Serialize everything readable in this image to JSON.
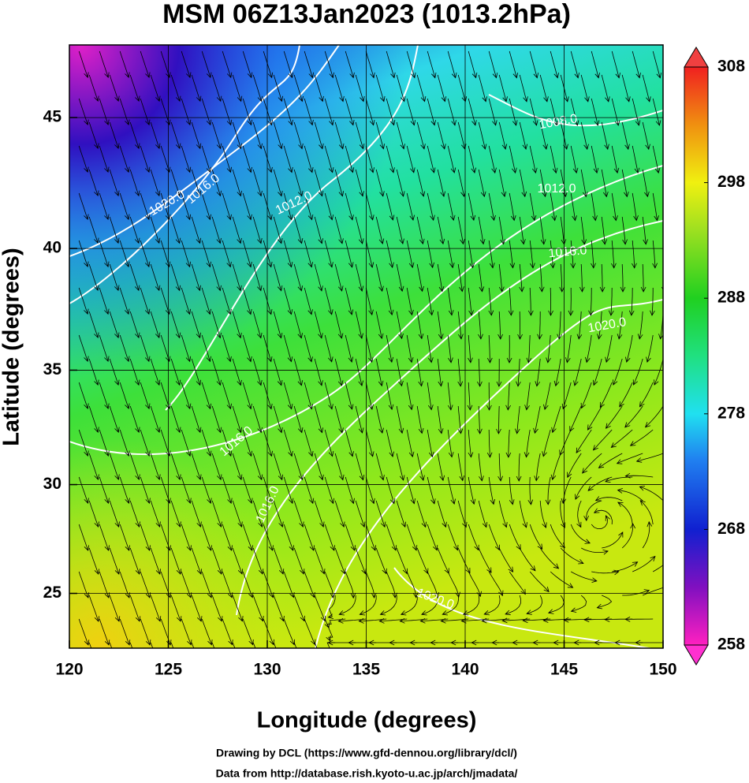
{
  "chart_data": {
    "type": "map",
    "title": "MSM 06Z13Jan2023 (1013.2hPa)",
    "x_label": "Longitude (degrees)",
    "y_label": "Latitude  (degrees)",
    "xlim": [
      120,
      150
    ],
    "xticks": [
      120,
      125,
      130,
      135,
      140,
      145,
      150
    ],
    "ylim": [
      22.4,
      47.6
    ],
    "yticks": [
      25,
      30,
      35,
      40,
      45
    ],
    "grid": true,
    "colorbar": {
      "lim": [
        258,
        308
      ],
      "ticks": [
        258,
        268,
        278,
        288,
        298,
        308
      ]
    },
    "contour_labels": [
      "1020.0",
      "1016.0",
      "1012.0",
      "1008.0",
      "1012.0",
      "1016.0",
      "1020.0",
      "1016.0",
      "1016.0",
      "1020.0"
    ],
    "footer": [
      "Drawing by DCL (https://www.gfd-dennou.org/library/dcl/)",
      "Data from http://database.rish.kyoto-u.ac.jp/arch/jmadata/"
    ]
  }
}
